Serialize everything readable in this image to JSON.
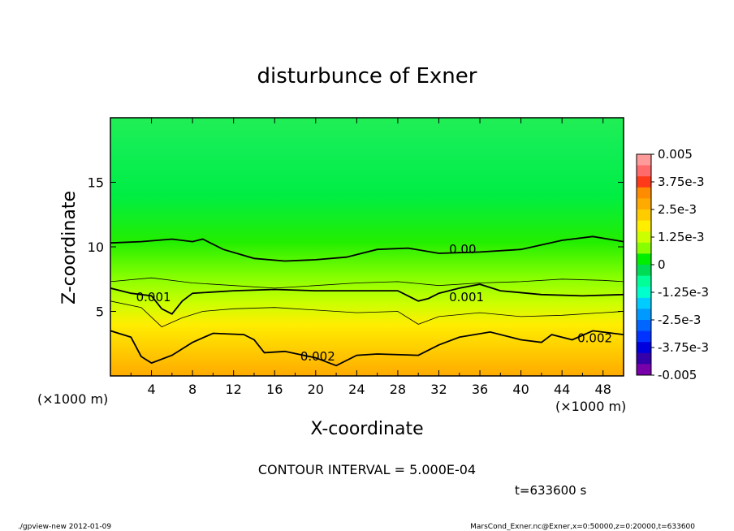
{
  "chart_data": {
    "type": "heatmap",
    "title": "disturbunce of Exner",
    "xlabel": "X-coordinate",
    "ylabel": "Z-coordinate",
    "x_unit": "(×1000 m)",
    "x_unit_bottom": "(×1000 m)",
    "xlim": [
      0,
      50
    ],
    "ylim": [
      0,
      20
    ],
    "x_ticks": [
      "4",
      "8",
      "12",
      "16",
      "20",
      "24",
      "28",
      "32",
      "36",
      "40",
      "44",
      "48"
    ],
    "y_ticks": [
      "5",
      "10",
      "15"
    ],
    "colorbar_labels": [
      "0.005",
      "3.75e-3",
      "2.5e-3",
      "1.25e-3",
      "0",
      "-1.25e-3",
      "-2.5e-3",
      "-3.75e-3",
      "-0.005"
    ],
    "colorbar_colors": [
      "#ff9a9a",
      "#ff6a6a",
      "#ff3a1a",
      "#ff8c00",
      "#ffaa00",
      "#ffcc00",
      "#ffee00",
      "#ccff00",
      "#88ff00",
      "#00ee00",
      "#00dd55",
      "#00ff99",
      "#00ffcc",
      "#00ccff",
      "#0099ff",
      "#0066ff",
      "#0033ff",
      "#0000dd",
      "#3300aa",
      "#7700aa"
    ],
    "contour_labels": [
      "0.00",
      "0.001",
      "0.001",
      "0.002",
      "0.002"
    ],
    "contour_interval": "CONTOUR INTERVAL = 5.000E-04",
    "time": "t=633600 s",
    "contour_levels": [
      {
        "value": 0.0,
        "labeled": true,
        "points": [
          [
            0,
            10.3
          ],
          [
            3,
            10.4
          ],
          [
            6,
            10.6
          ],
          [
            8,
            10.4
          ],
          [
            9,
            10.6
          ],
          [
            11,
            9.8
          ],
          [
            14,
            9.1
          ],
          [
            17,
            8.9
          ],
          [
            20,
            9.0
          ],
          [
            23,
            9.2
          ],
          [
            26,
            9.8
          ],
          [
            29,
            9.9
          ],
          [
            32,
            9.5
          ],
          [
            36,
            9.6
          ],
          [
            40,
            9.8
          ],
          [
            44,
            10.5
          ],
          [
            47,
            10.8
          ],
          [
            50,
            10.4
          ]
        ]
      },
      {
        "value": 0.0005,
        "labeled": false,
        "points": [
          [
            0,
            7.3
          ],
          [
            4,
            7.6
          ],
          [
            8,
            7.2
          ],
          [
            12,
            7.0
          ],
          [
            16,
            6.8
          ],
          [
            20,
            7.0
          ],
          [
            24,
            7.2
          ],
          [
            28,
            7.3
          ],
          [
            32,
            7.0
          ],
          [
            36,
            7.2
          ],
          [
            40,
            7.3
          ],
          [
            44,
            7.5
          ],
          [
            48,
            7.4
          ],
          [
            50,
            7.3
          ]
        ]
      },
      {
        "value": 0.001,
        "labeled": true,
        "points": [
          [
            0,
            6.8
          ],
          [
            2,
            6.4
          ],
          [
            4,
            6.2
          ],
          [
            5,
            5.2
          ],
          [
            6,
            4.8
          ],
          [
            7,
            5.8
          ],
          [
            8,
            6.4
          ],
          [
            12,
            6.6
          ],
          [
            16,
            6.7
          ],
          [
            20,
            6.6
          ],
          [
            24,
            6.6
          ],
          [
            28,
            6.6
          ],
          [
            30,
            5.8
          ],
          [
            31,
            6.0
          ],
          [
            32,
            6.4
          ],
          [
            34,
            6.8
          ],
          [
            36,
            7.1
          ],
          [
            38,
            6.6
          ],
          [
            42,
            6.3
          ],
          [
            46,
            6.2
          ],
          [
            50,
            6.3
          ]
        ]
      },
      {
        "value": 0.0015,
        "labeled": false,
        "points": [
          [
            0,
            5.8
          ],
          [
            3,
            5.3
          ],
          [
            5,
            3.8
          ],
          [
            7,
            4.5
          ],
          [
            9,
            5.0
          ],
          [
            12,
            5.2
          ],
          [
            16,
            5.3
          ],
          [
            20,
            5.1
          ],
          [
            24,
            4.9
          ],
          [
            28,
            5.0
          ],
          [
            30,
            4.0
          ],
          [
            32,
            4.6
          ],
          [
            36,
            4.9
          ],
          [
            40,
            4.6
          ],
          [
            44,
            4.7
          ],
          [
            48,
            4.9
          ],
          [
            50,
            5.0
          ]
        ]
      },
      {
        "value": 0.002,
        "labeled": true,
        "points": [
          [
            0,
            3.5
          ],
          [
            2,
            3.0
          ],
          [
            3,
            1.5
          ],
          [
            4,
            1.0
          ],
          [
            6,
            1.6
          ],
          [
            8,
            2.6
          ],
          [
            10,
            3.3
          ],
          [
            13,
            3.2
          ],
          [
            14,
            2.8
          ],
          [
            15,
            1.8
          ],
          [
            17,
            1.9
          ],
          [
            20,
            1.4
          ],
          [
            22,
            0.8
          ],
          [
            24,
            1.6
          ],
          [
            26,
            1.7
          ],
          [
            30,
            1.6
          ],
          [
            32,
            2.4
          ],
          [
            34,
            3.0
          ],
          [
            37,
            3.4
          ],
          [
            40,
            2.8
          ],
          [
            42,
            2.6
          ],
          [
            43,
            3.2
          ],
          [
            45,
            2.8
          ],
          [
            47,
            3.5
          ],
          [
            50,
            3.2
          ]
        ]
      }
    ]
  },
  "footer": {
    "left": "./gpview-new  2012-01-09",
    "right": "MarsCond_Exner.nc@Exner,x=0:50000,z=0:20000,t=633600"
  }
}
